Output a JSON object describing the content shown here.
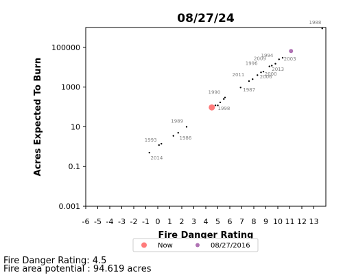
{
  "footer": {
    "rating_line": "Fire Danger Rating: 4.5",
    "area_line": "Fire area potential : 94.619 acres"
  },
  "chart_data": {
    "type": "scatter",
    "title": "08/27/24",
    "xlabel": "Fire Danger Rating",
    "ylabel": "Acres Expected To Burn",
    "xlim": [
      -6,
      14
    ],
    "ylim": [
      0.001,
      1000000
    ],
    "y_scale": "log",
    "x_ticks": [
      -6,
      -5,
      -4,
      -3,
      -2,
      -1,
      0,
      1,
      2,
      3,
      4,
      5,
      6,
      7,
      8,
      9,
      10,
      11,
      12,
      13
    ],
    "y_ticks": [
      {
        "value": 0.001,
        "label": "0.001"
      },
      {
        "value": 0.1,
        "label": "0.1"
      },
      {
        "value": 10,
        "label": "10"
      },
      {
        "value": 1000,
        "label": "1000"
      },
      {
        "value": 100000,
        "label": "100000"
      }
    ],
    "grid": false,
    "legend_position": "bottom-center",
    "series": [
      {
        "name": "",
        "color": "#000000",
        "points": [
          {
            "x": -0.7,
            "y": 0.5
          },
          {
            "x": 0.1,
            "y": 1.2
          },
          {
            "x": 0.3,
            "y": 1.4
          },
          {
            "x": 1.3,
            "y": 3.5
          },
          {
            "x": 1.7,
            "y": 5
          },
          {
            "x": 2.4,
            "y": 10
          },
          {
            "x": 4.8,
            "y": 120
          },
          {
            "x": 5.0,
            "y": 120
          },
          {
            "x": 5.2,
            "y": 170
          },
          {
            "x": 5.5,
            "y": 250
          },
          {
            "x": 5.6,
            "y": 300
          },
          {
            "x": 6.9,
            "y": 950
          },
          {
            "x": 7.6,
            "y": 2000
          },
          {
            "x": 7.9,
            "y": 2500
          },
          {
            "x": 8.3,
            "y": 4000
          },
          {
            "x": 8.6,
            "y": 5500
          },
          {
            "x": 8.8,
            "y": 6000
          },
          {
            "x": 9.3,
            "y": 11000
          },
          {
            "x": 9.5,
            "y": 12000
          },
          {
            "x": 9.8,
            "y": 15000
          },
          {
            "x": 10.1,
            "y": 25000
          },
          {
            "x": 10.4,
            "y": 30000
          },
          {
            "x": 13.7,
            "y": 900000
          }
        ]
      },
      {
        "name": "Now",
        "color": "#ff5a5a",
        "points": [
          {
            "x": 4.5,
            "y": 94.619
          }
        ]
      },
      {
        "name": "08/27/2016",
        "color": "#9b4fa0",
        "points": [
          {
            "x": 11.1,
            "y": 65000
          }
        ]
      }
    ],
    "annotations": [
      {
        "text": "1988",
        "x": 12.6,
        "y": 1500000
      },
      {
        "text": "1994",
        "x": 8.6,
        "y": 33000
      },
      {
        "text": "2003",
        "x": 10.5,
        "y": 22000
      },
      {
        "text": "2009",
        "x": 8.0,
        "y": 23000
      },
      {
        "text": "1996",
        "x": 7.3,
        "y": 13000
      },
      {
        "text": "2013",
        "x": 9.5,
        "y": 6500
      },
      {
        "text": "2000",
        "x": 8.9,
        "y": 3800
      },
      {
        "text": "2011",
        "x": 6.2,
        "y": 3500
      },
      {
        "text": "2006",
        "x": 8.5,
        "y": 2700
      },
      {
        "text": "1987",
        "x": 7.1,
        "y": 600
      },
      {
        "text": "1990",
        "x": 4.2,
        "y": 450
      },
      {
        "text": "1998",
        "x": 5.0,
        "y": 70
      },
      {
        "text": "1989",
        "x": 1.1,
        "y": 16
      },
      {
        "text": "1986",
        "x": 1.8,
        "y": 2.3
      },
      {
        "text": "1993",
        "x": -1.1,
        "y": 1.8
      },
      {
        "text": "2014",
        "x": -0.6,
        "y": 0.23
      }
    ]
  }
}
